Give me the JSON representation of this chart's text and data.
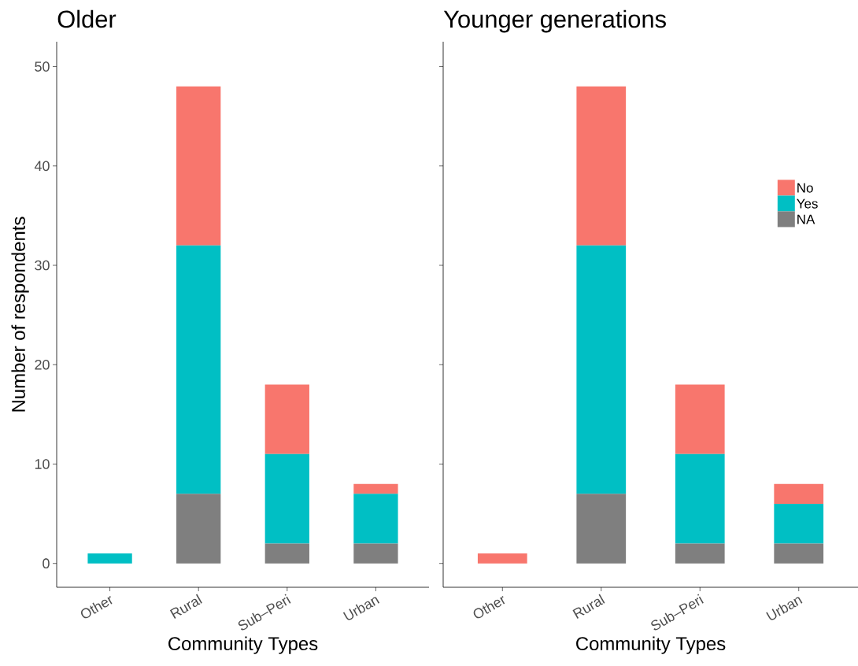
{
  "chart_data": [
    {
      "type": "bar",
      "title": "Older",
      "xlabel": "Community Types",
      "ylabel": "Number of respondents",
      "categories": [
        "Other",
        "Rural",
        "Sub–Peri",
        "Urban"
      ],
      "stacked": true,
      "ylim": [
        -2.4,
        52.5
      ],
      "yticks": [
        0,
        10,
        20,
        30,
        40,
        50
      ],
      "legend": false,
      "series": [
        {
          "color": "#7f7f7f",
          "values": [
            0,
            7,
            2,
            2
          ]
        },
        {
          "color": "#00bfc4",
          "values": [
            1,
            25,
            9,
            5
          ]
        },
        {
          "color": "#f8766d",
          "values": [
            0,
            16,
            7,
            1
          ]
        }
      ]
    },
    {
      "type": "bar",
      "title": "Younger generations",
      "xlabel": "Community Types",
      "categories": [
        "Other",
        "Rural",
        "Sub–Peri",
        "Urban"
      ],
      "stacked": true,
      "ylim": [
        -2.4,
        52.5
      ],
      "yticks": [
        0,
        10,
        20,
        30,
        40,
        50
      ],
      "tick_labels": "x",
      "legend": "right",
      "series": [
        {
          "name": "NA",
          "color": "#7f7f7f",
          "values": [
            0,
            7,
            2,
            2
          ]
        },
        {
          "name": "Yes",
          "color": "#00bfc4",
          "values": [
            0,
            25,
            9,
            4
          ]
        },
        {
          "name": "No",
          "color": "#f8766d",
          "values": [
            1,
            16,
            7,
            2
          ]
        }
      ]
    }
  ]
}
